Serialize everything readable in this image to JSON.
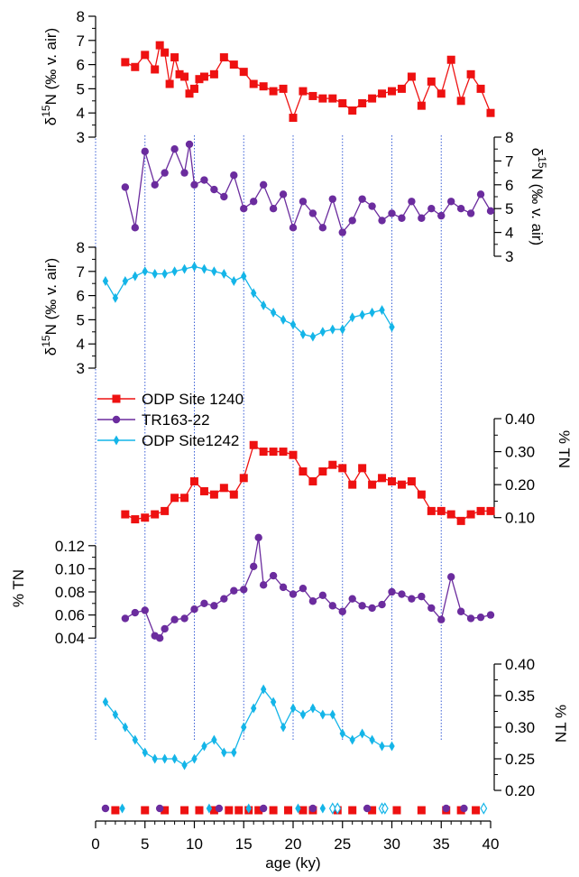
{
  "colors": {
    "site1240": "#ee1111",
    "tr16322": "#6b2c9e",
    "site1242": "#14b5e8",
    "grid": "#3a5fd6",
    "axis": "#000000"
  },
  "legend": [
    {
      "label": "ODP Site 1240",
      "marker": "square",
      "color": "#ee1111"
    },
    {
      "label": "TR163-22",
      "marker": "circle",
      "color": "#6b2c9e"
    },
    {
      "label": "ODP Site1242",
      "marker": "diamond",
      "color": "#14b5e8"
    }
  ],
  "chart_data": [
    {
      "type": "line",
      "series_name": "ODP Site 1240",
      "axis_side": "left",
      "ylabel": "δ15N (‰ v. air)",
      "ylim": [
        3,
        8
      ],
      "yticks": [
        "3",
        "4",
        "5",
        "6",
        "7",
        "8"
      ],
      "x": [
        3,
        4,
        5,
        6,
        6.5,
        7,
        7.5,
        8,
        8.5,
        9,
        9.5,
        10,
        10.5,
        11,
        12,
        13,
        14,
        15,
        16,
        17,
        18,
        19,
        20,
        21,
        22,
        23,
        24,
        25,
        26,
        27,
        28,
        29,
        30,
        31,
        32,
        33,
        34,
        35,
        36,
        37,
        38,
        39,
        40
      ],
      "y": [
        6.1,
        5.9,
        6.4,
        5.8,
        6.8,
        6.5,
        5.2,
        6.3,
        5.6,
        5.5,
        4.8,
        5.0,
        5.4,
        5.5,
        5.6,
        6.3,
        6.0,
        5.7,
        5.2,
        5.1,
        4.9,
        5.0,
        3.8,
        4.9,
        4.7,
        4.6,
        4.6,
        4.4,
        4.1,
        4.4,
        4.6,
        4.8,
        4.9,
        5.0,
        5.5,
        4.3,
        5.3,
        4.8,
        6.2,
        4.5,
        5.6,
        5.0,
        4.0
      ]
    },
    {
      "type": "line",
      "series_name": "TR163-22",
      "axis_side": "right",
      "ylabel": "δ15N (‰ v. air)",
      "ylim": [
        3,
        8
      ],
      "yticks": [
        "3",
        "4",
        "5",
        "6",
        "7",
        "8"
      ],
      "x": [
        3,
        4,
        5,
        6,
        7,
        8,
        9,
        9.5,
        10,
        11,
        12,
        13,
        14,
        15,
        16,
        17,
        18,
        19,
        20,
        21,
        22,
        23,
        24,
        25,
        26,
        27,
        28,
        29,
        30,
        31,
        32,
        33,
        34,
        35,
        36,
        37,
        38,
        39,
        40
      ],
      "y": [
        5.9,
        4.2,
        7.4,
        6.0,
        6.5,
        7.5,
        6.5,
        7.7,
        6.0,
        6.2,
        5.8,
        5.5,
        6.4,
        5.0,
        5.3,
        6.0,
        5.0,
        5.6,
        4.2,
        5.3,
        4.8,
        4.2,
        5.4,
        4.0,
        4.5,
        5.4,
        5.1,
        4.5,
        4.8,
        4.6,
        5.3,
        4.6,
        5.0,
        4.7,
        5.3,
        5.0,
        4.8,
        5.6,
        4.9
      ]
    },
    {
      "type": "line",
      "series_name": "ODP Site1242",
      "axis_side": "left",
      "ylabel": "δ15N (‰ v. air)",
      "ylim": [
        3,
        8
      ],
      "yticks": [
        "3",
        "4",
        "5",
        "6",
        "7",
        "8"
      ],
      "x": [
        1,
        2,
        3,
        4,
        5,
        6,
        7,
        8,
        9,
        10,
        11,
        12,
        13,
        14,
        15,
        16,
        17,
        18,
        19,
        20,
        21,
        22,
        23,
        24,
        25,
        26,
        27,
        28,
        29,
        30
      ],
      "y": [
        6.6,
        5.9,
        6.6,
        6.8,
        7.0,
        6.9,
        6.9,
        7.0,
        7.1,
        7.2,
        7.1,
        7.0,
        6.9,
        6.6,
        6.8,
        6.1,
        5.6,
        5.3,
        5.0,
        4.8,
        4.4,
        4.3,
        4.5,
        4.6,
        4.6,
        5.1,
        5.2,
        5.3,
        5.4,
        4.7
      ]
    },
    {
      "type": "line",
      "series_name": "ODP Site 1240",
      "axis_side": "right",
      "ylabel": "% TN",
      "ylim": [
        0.05,
        0.4
      ],
      "yticks": [
        "0.10",
        "0.20",
        "0.30",
        "0.40"
      ],
      "x": [
        3,
        4,
        5,
        6,
        7,
        8,
        9,
        10,
        11,
        12,
        13,
        14,
        15,
        16,
        17,
        18,
        19,
        20,
        21,
        22,
        23,
        24,
        25,
        26,
        27,
        28,
        29,
        30,
        31,
        32,
        33,
        34,
        35,
        36,
        37,
        38,
        39,
        40
      ],
      "y": [
        0.11,
        0.095,
        0.1,
        0.11,
        0.12,
        0.16,
        0.16,
        0.21,
        0.18,
        0.17,
        0.19,
        0.17,
        0.22,
        0.32,
        0.3,
        0.3,
        0.3,
        0.29,
        0.24,
        0.21,
        0.24,
        0.26,
        0.25,
        0.2,
        0.25,
        0.2,
        0.22,
        0.21,
        0.2,
        0.21,
        0.17,
        0.12,
        0.12,
        0.11,
        0.09,
        0.11,
        0.12,
        0.12
      ]
    },
    {
      "type": "line",
      "series_name": "TR163-22",
      "axis_side": "left",
      "ylabel": "% TN",
      "ylim": [
        0.03,
        0.13
      ],
      "yticks": [
        "0.04",
        "0.06",
        "0.08",
        "0.10",
        "0.12"
      ],
      "x": [
        3,
        4,
        5,
        6,
        6.5,
        7,
        8,
        9,
        10,
        11,
        12,
        13,
        14,
        15,
        16,
        16.5,
        17,
        18,
        19,
        20,
        21,
        22,
        23,
        24,
        25,
        26,
        27,
        28,
        29,
        30,
        31,
        32,
        33,
        34,
        35,
        36,
        37,
        38,
        39,
        40
      ],
      "y": [
        0.057,
        0.062,
        0.064,
        0.042,
        0.04,
        0.048,
        0.056,
        0.057,
        0.065,
        0.07,
        0.068,
        0.074,
        0.081,
        0.082,
        0.102,
        0.127,
        0.086,
        0.094,
        0.084,
        0.078,
        0.083,
        0.072,
        0.077,
        0.068,
        0.063,
        0.074,
        0.068,
        0.066,
        0.069,
        0.08,
        0.078,
        0.074,
        0.076,
        0.066,
        0.056,
        0.093,
        0.063,
        0.057,
        0.058,
        0.06
      ]
    },
    {
      "type": "line",
      "series_name": "ODP Site1242",
      "axis_side": "right",
      "ylabel": "% TN",
      "ylim": [
        0.2,
        0.4
      ],
      "yticks": [
        "0.20",
        "0.25",
        "0.30",
        "0.35",
        "0.40"
      ],
      "x": [
        1,
        2,
        3,
        4,
        5,
        6,
        7,
        8,
        9,
        10,
        11,
        12,
        13,
        14,
        15,
        16,
        17,
        18,
        19,
        20,
        21,
        22,
        23,
        24,
        25,
        26,
        27,
        28,
        29,
        30
      ],
      "y": [
        0.34,
        0.32,
        0.3,
        0.28,
        0.26,
        0.25,
        0.25,
        0.25,
        0.24,
        0.25,
        0.27,
        0.28,
        0.26,
        0.26,
        0.3,
        0.33,
        0.36,
        0.34,
        0.3,
        0.33,
        0.32,
        0.33,
        0.32,
        0.32,
        0.29,
        0.28,
        0.29,
        0.28,
        0.27,
        0.27
      ]
    }
  ],
  "age_control": {
    "site1240_squares": [
      2,
      5,
      7,
      9,
      10.5,
      12,
      13.5,
      14.5,
      15.5,
      16.5,
      18,
      19.5,
      21,
      22,
      24.5,
      26,
      28,
      30.5,
      33,
      35.5,
      37,
      38.5
    ],
    "tr16322_circles": [
      1,
      6.5,
      12.5,
      17,
      22,
      27.5,
      35.5,
      37.3
    ],
    "site1242_filled_diamonds": [
      2.7,
      11.5,
      15.5,
      20.5,
      23
    ],
    "site1242_open_diamonds": [
      24,
      24.5,
      29,
      29.3,
      39.3
    ]
  },
  "xaxis": {
    "label": "age (ky)",
    "lim": [
      0,
      40
    ],
    "ticks": [
      "0",
      "5",
      "10",
      "15",
      "20",
      "25",
      "30",
      "35",
      "40"
    ]
  },
  "gridlines_x": [
    0,
    5,
    10,
    15,
    20,
    25,
    30,
    35
  ]
}
